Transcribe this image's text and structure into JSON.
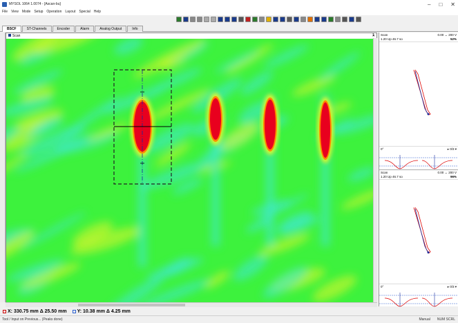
{
  "window": {
    "title": "MYSOL 1064 1.0074 - [Ascan-bu]",
    "minimize": "–",
    "maximize": "□",
    "close": "✕"
  },
  "menu": [
    "File",
    "View",
    "Mode",
    "Setup",
    "Operation",
    "Layout",
    "Special",
    "Help"
  ],
  "toolbar_buttons": [
    "tool-1",
    "tool-2",
    "tool-3",
    "tool-4",
    "tool-5",
    "tool-6",
    "tool-7",
    "tool-8",
    "tool-9",
    "tool-10",
    "tool-11",
    "tool-12",
    "tool-13",
    "tool-14",
    "tool-15",
    "tool-16",
    "tool-17",
    "tool-18",
    "tool-19",
    "tool-20",
    "tool-21",
    "tool-22",
    "tool-23",
    "tool-24",
    "tool-25",
    "tool-26",
    "tool-27"
  ],
  "tabs": [
    "BSCF",
    "ST-Channels",
    "Encoder",
    "Alarm",
    "Analog Output",
    "Info"
  ],
  "active_tab": 0,
  "scan": {
    "header": "Scan",
    "page_num": "1",
    "colors": {
      "bg": "#3df23d",
      "cyan": "#3fe8d8",
      "red": "#e8001e",
      "yellow": "#e6f52a",
      "orange": "#ff8a00"
    }
  },
  "ascan": [
    {
      "title": "Scan",
      "line1": "1.20 Up  46.7 so",
      "right1": "0.00  ↔ 200 V",
      "right2": "52%",
      "foot_left": "0°",
      "foot_right": "▸ 0/3 ▾"
    },
    {
      "title": "Scan",
      "line1": "1.20 Up  46.7 so",
      "right1": "0.00  ↔ 200 V",
      "right2": "96%",
      "foot_left": "0°",
      "foot_right": "▸ 0/3 ▾"
    }
  ],
  "coords": {
    "x": "X: 330.75 mm Δ 25.50 mm",
    "y": "Y: 10.38 mm Δ 4.25 mm"
  },
  "status": {
    "left": "Tool / Input on Previous... (Peaks done)",
    "mode": "Manual",
    "right": "NUM SCRL"
  }
}
